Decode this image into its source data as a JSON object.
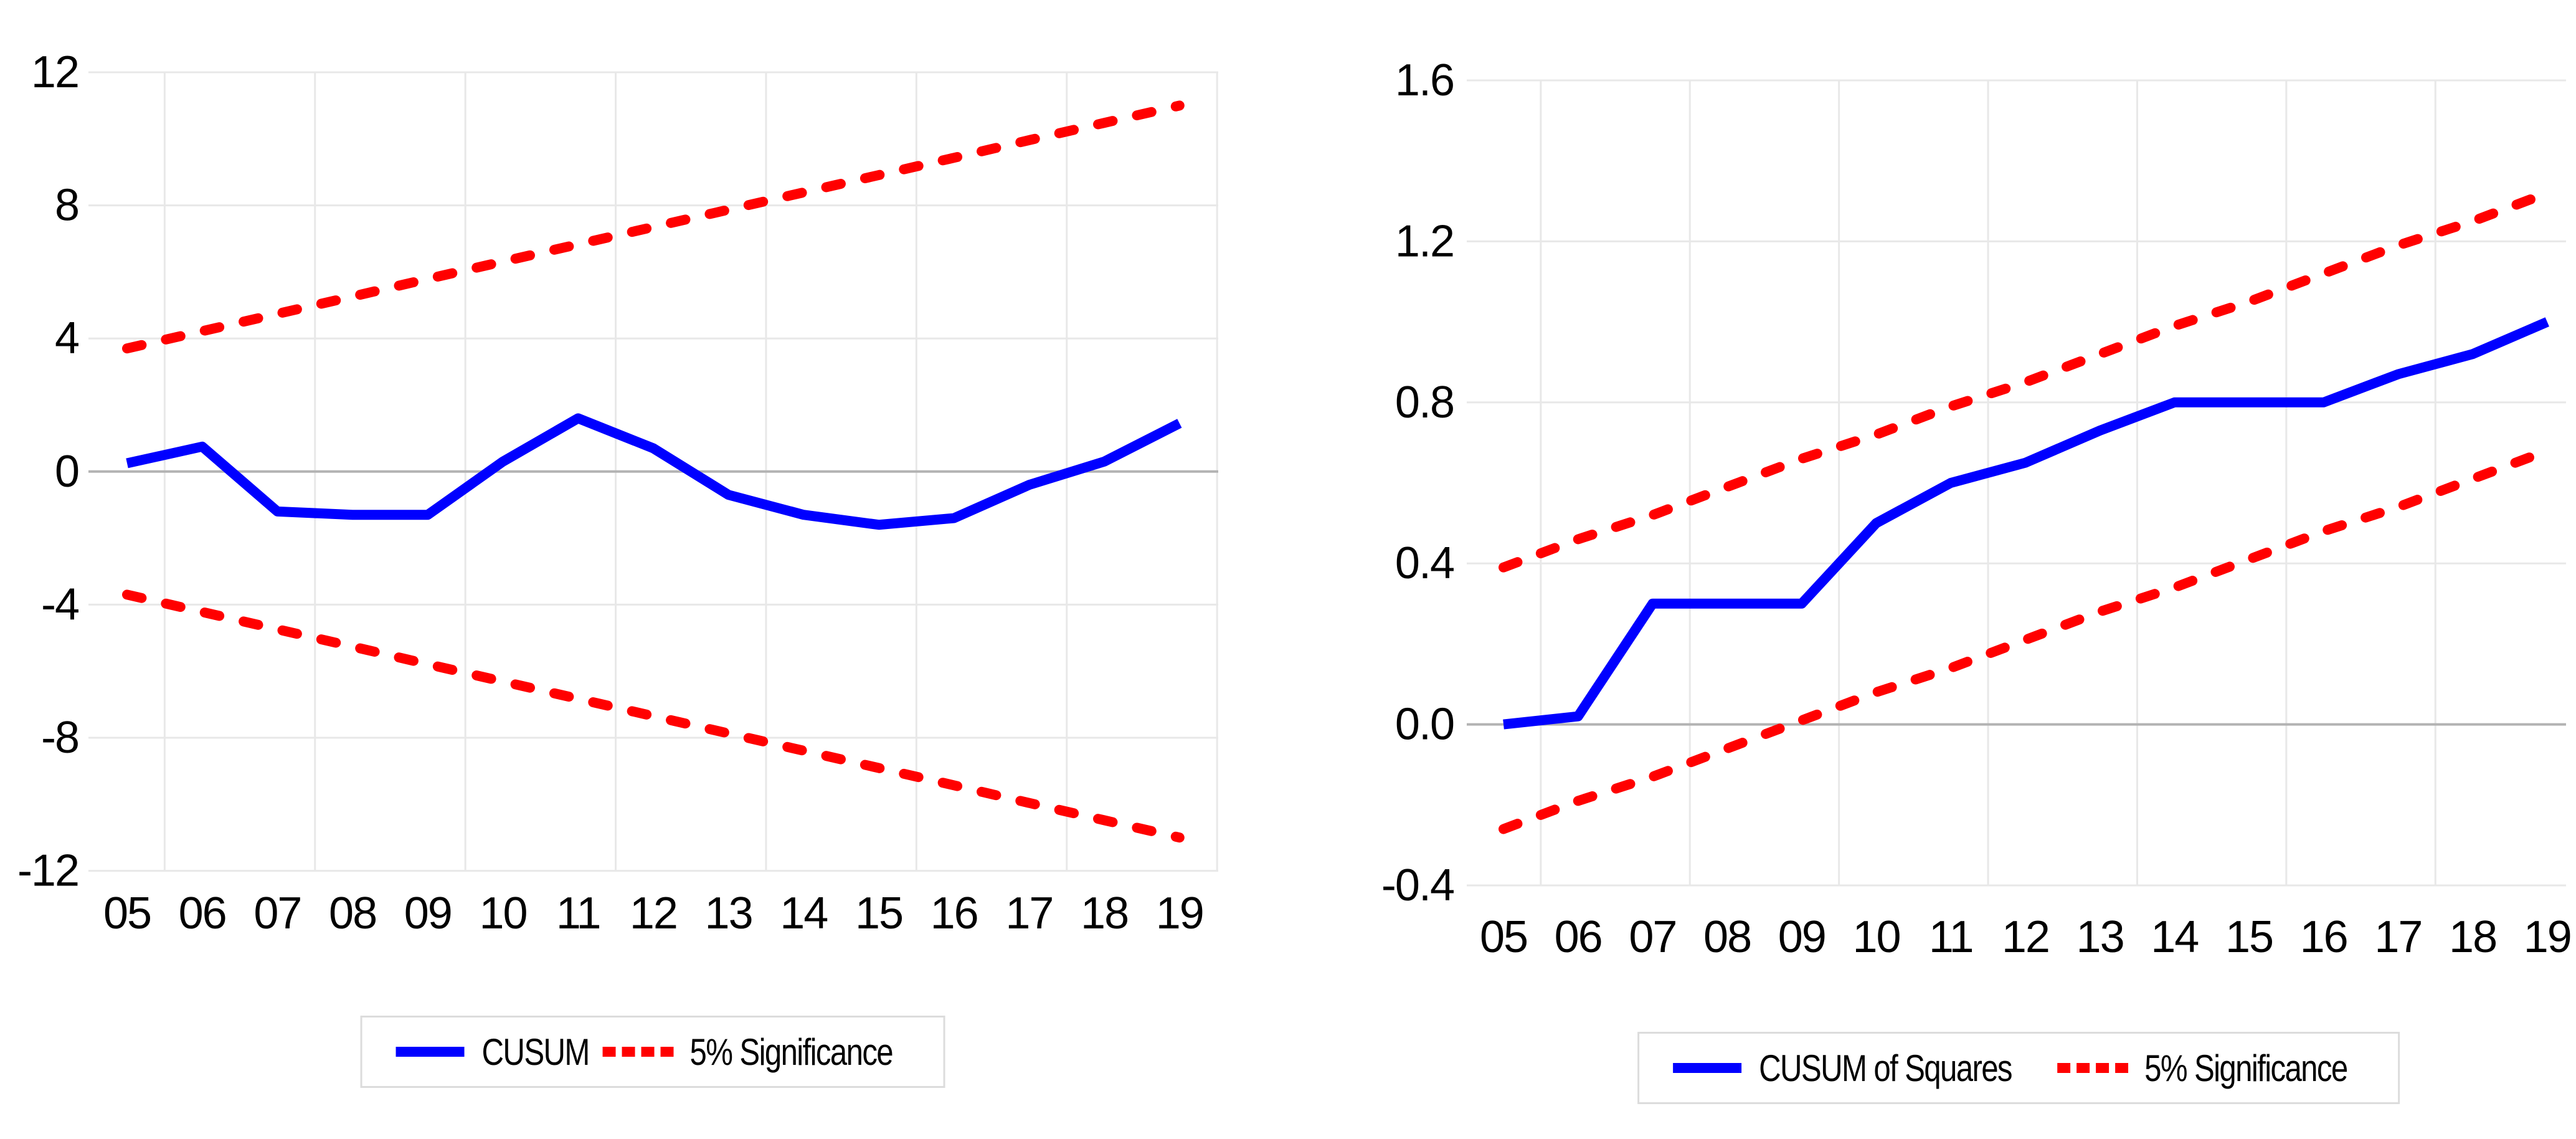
{
  "page": {
    "background_color": "#ffffff",
    "text_color": "#000000",
    "gridline_color": "#e8e8e8",
    "zero_line_color": "#b3b3b3",
    "legend_border_color": "#dcdcdc"
  },
  "chart_data": [
    {
      "type": "line",
      "title": "",
      "xlabel": "",
      "ylabel": "",
      "categories": [
        "05",
        "06",
        "07",
        "08",
        "09",
        "10",
        "11",
        "12",
        "13",
        "14",
        "15",
        "16",
        "17",
        "18",
        "19"
      ],
      "ylim": [
        -12,
        12
      ],
      "ytick_values": [
        12,
        8,
        4,
        0,
        -4,
        -8,
        -12
      ],
      "ytick_labels": [
        "12",
        "8",
        "4",
        "0",
        "-4",
        "-8",
        "-12"
      ],
      "grid": {
        "horizontal": true,
        "vertical": "every 2 years at midpoints",
        "zero_line_emphasized": true
      },
      "legend_position": "bottom-center",
      "series": [
        {
          "name": "CUSUM",
          "color": "#0000ff",
          "line_style": "solid",
          "values": [
            0.25,
            0.75,
            -1.2,
            -1.3,
            -1.3,
            0.3,
            1.6,
            0.7,
            -0.7,
            -1.3,
            -1.6,
            -1.4,
            -0.4,
            0.3,
            1.45
          ]
        },
        {
          "name": "5% Significance upper bound",
          "color": "#ff0000",
          "line_style": "dashed",
          "values": [
            3.7,
            4.22,
            4.74,
            5.26,
            5.79,
            6.31,
            6.83,
            7.35,
            7.87,
            8.39,
            8.91,
            9.43,
            9.96,
            10.48,
            11.0
          ]
        },
        {
          "name": "5% Significance lower bound",
          "color": "#ff0000",
          "line_style": "dashed",
          "values": [
            -3.7,
            -4.22,
            -4.74,
            -5.26,
            -5.79,
            -6.31,
            -6.83,
            -7.35,
            -7.87,
            -8.39,
            -8.91,
            -9.43,
            -9.96,
            -10.48,
            -11.0
          ]
        }
      ],
      "legend": [
        {
          "label": "CUSUM",
          "color": "#0000ff",
          "style": "solid"
        },
        {
          "label": "5% Significance",
          "color": "#ff0000",
          "style": "dashed"
        }
      ]
    },
    {
      "type": "line",
      "title": "",
      "xlabel": "",
      "ylabel": "",
      "categories": [
        "05",
        "06",
        "07",
        "08",
        "09",
        "10",
        "11",
        "12",
        "13",
        "14",
        "15",
        "16",
        "17",
        "18",
        "19"
      ],
      "ylim": [
        -0.4,
        1.6
      ],
      "ytick_values": [
        1.6,
        1.2,
        0.8,
        0.4,
        0.0,
        -0.4
      ],
      "ytick_labels": [
        "1.6",
        "1.2",
        "0.8",
        "0.4",
        "0.0",
        "-0.4"
      ],
      "grid": {
        "horizontal": true,
        "vertical": "every 2 years at midpoints",
        "zero_line_emphasized": true
      },
      "legend_position": "bottom-center",
      "series": [
        {
          "name": "CUSUM of Squares",
          "color": "#0000ff",
          "line_style": "solid",
          "values": [
            0.0,
            0.02,
            0.3,
            0.3,
            0.3,
            0.5,
            0.6,
            0.65,
            0.73,
            0.8,
            0.8,
            0.8,
            0.87,
            0.92,
            1.0
          ]
        },
        {
          "name": "5% Significance upper bound",
          "color": "#ff0000",
          "line_style": "dashed",
          "values": [
            0.39,
            0.46,
            0.52,
            0.59,
            0.66,
            0.72,
            0.79,
            0.85,
            0.92,
            0.99,
            1.05,
            1.12,
            1.19,
            1.25,
            1.32
          ]
        },
        {
          "name": "5% Significance lower bound",
          "color": "#ff0000",
          "line_style": "dashed",
          "values": [
            -0.26,
            -0.19,
            -0.13,
            -0.06,
            0.01,
            0.08,
            0.14,
            0.21,
            0.28,
            0.34,
            0.41,
            0.48,
            0.54,
            0.61,
            0.68
          ]
        }
      ],
      "legend": [
        {
          "label": "CUSUM of Squares",
          "color": "#0000ff",
          "style": "solid"
        },
        {
          "label": "5% Significance",
          "color": "#ff0000",
          "style": "dashed"
        }
      ]
    }
  ]
}
